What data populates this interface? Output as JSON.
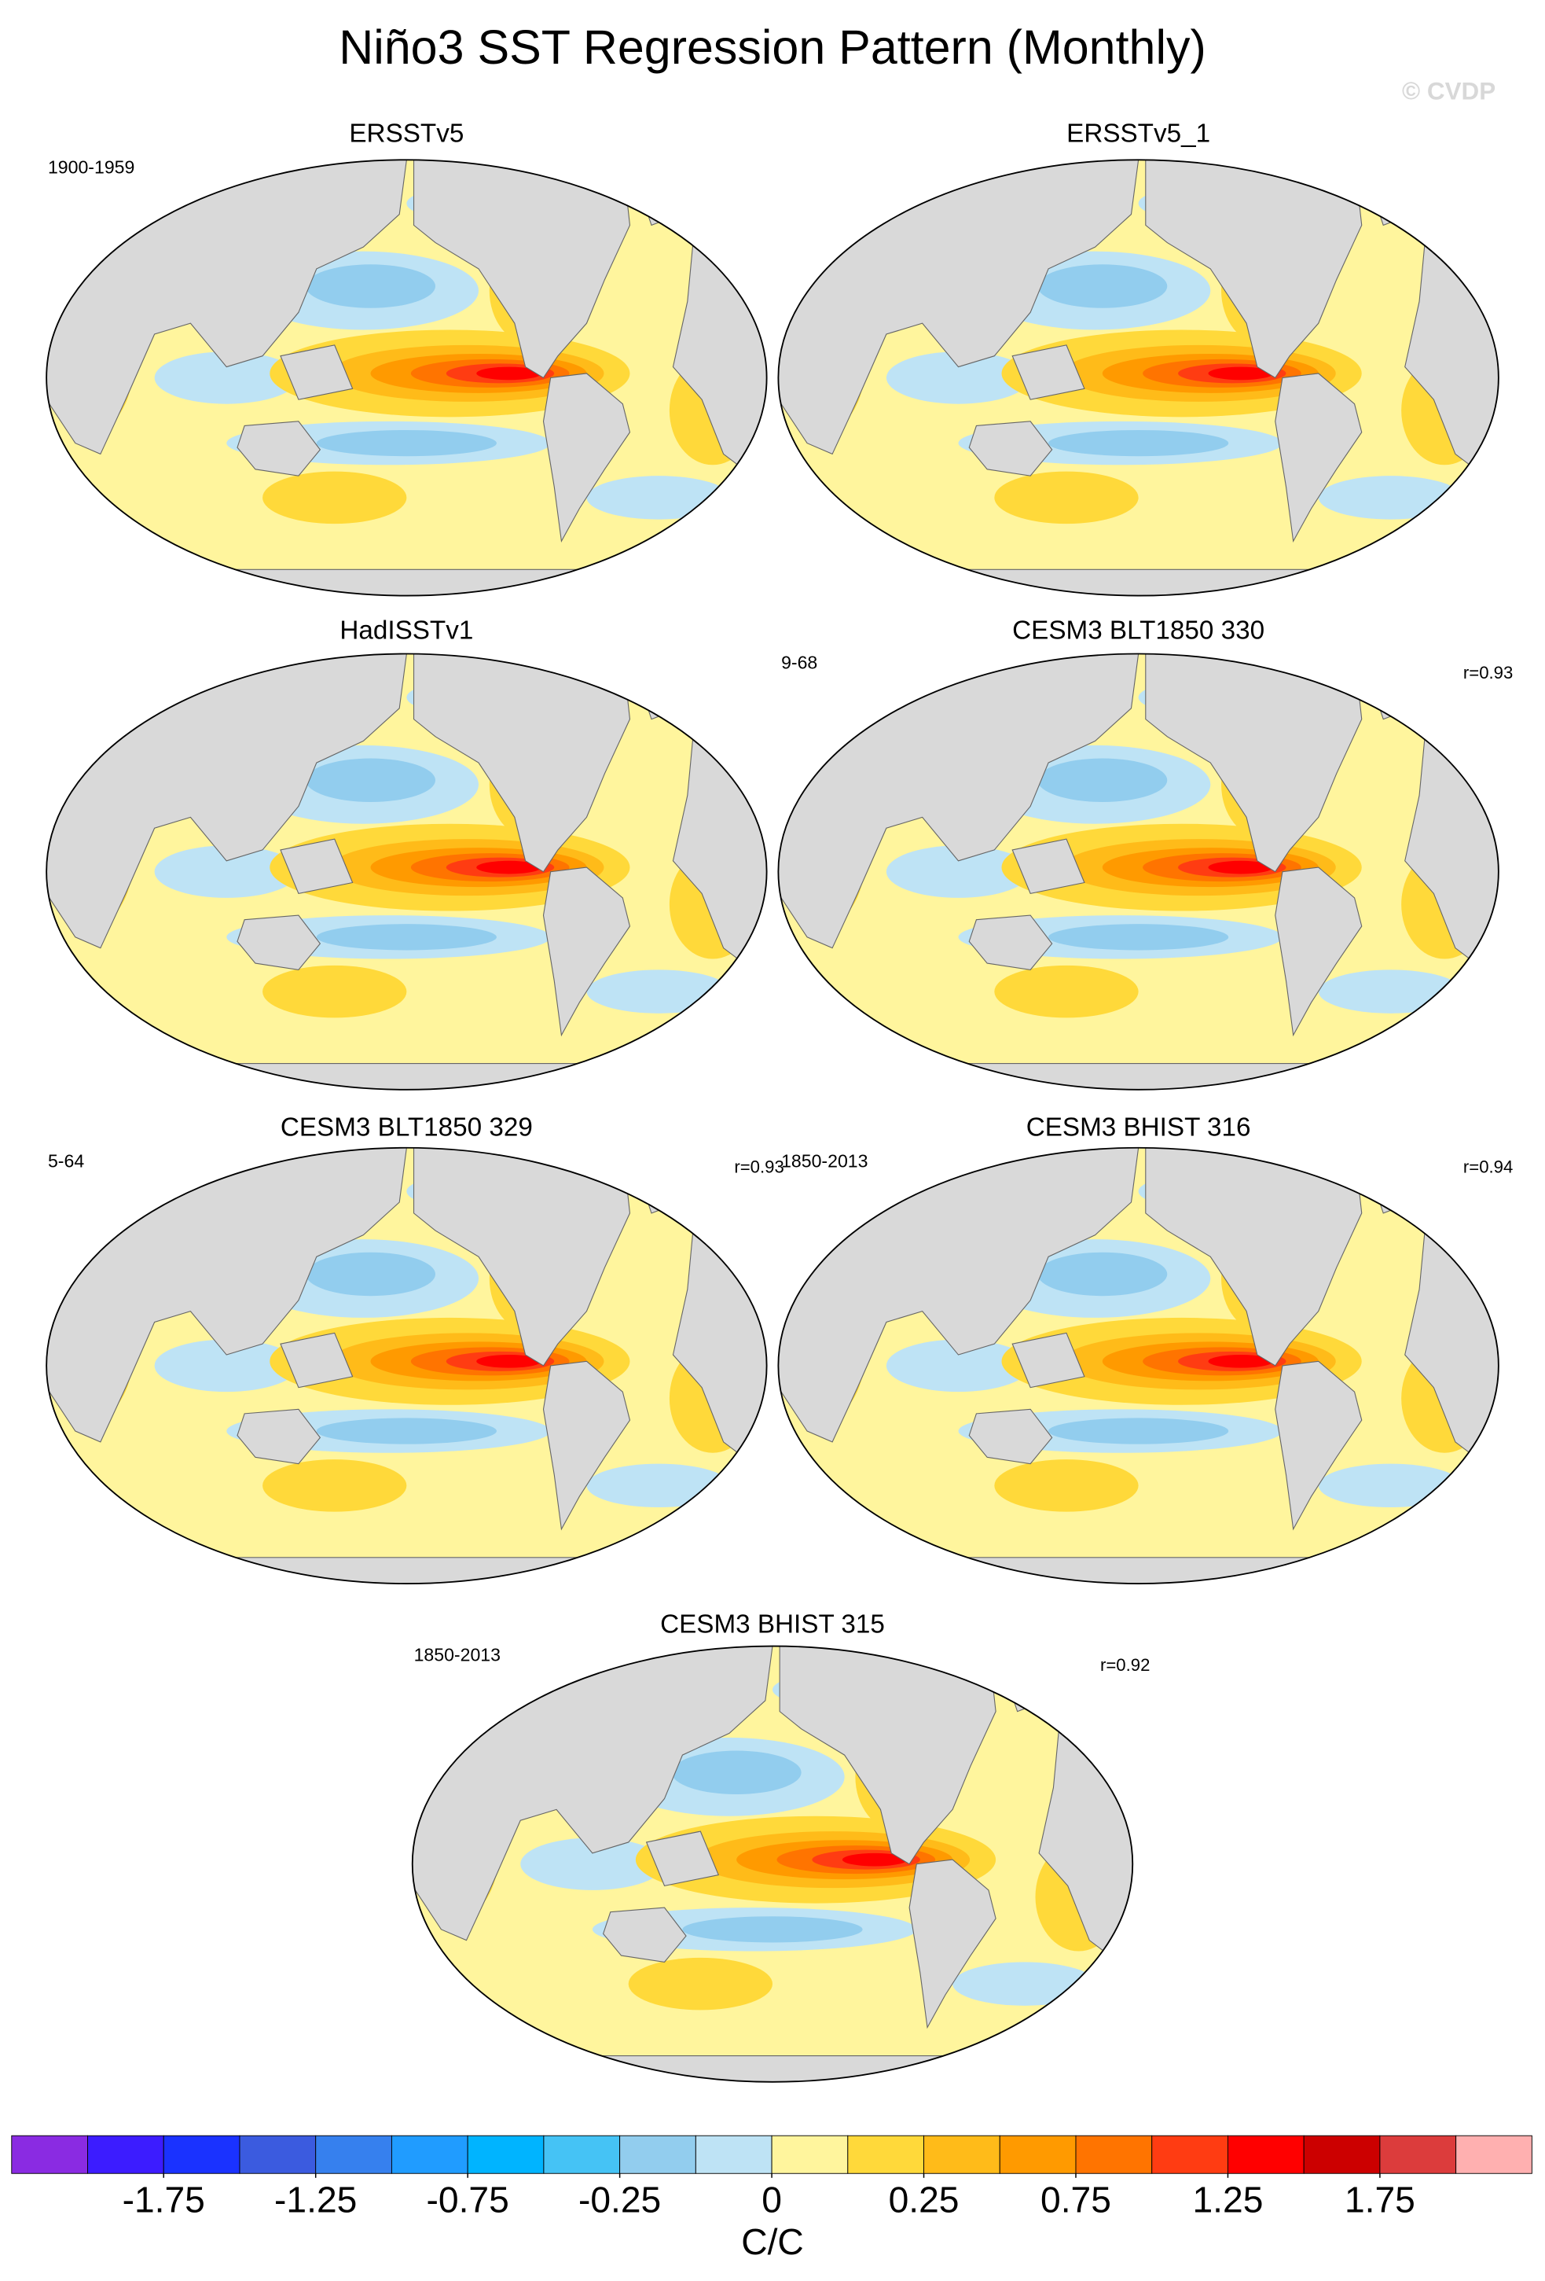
{
  "chart_data": {
    "type": "map",
    "title": "Niño3 SST Regression Pattern (Monthly)",
    "watermark": "© CVDP",
    "panels": [
      {
        "title": "ERSSTv5",
        "period": "1900-1959"
      },
      {
        "title": "ERSSTv5_1"
      },
      {
        "title": "HadISSTv1"
      },
      {
        "title": "CESM3 BLT1850 330",
        "period": "9-68",
        "r": "r=0.93"
      },
      {
        "title": "CESM3 BLT1850 329",
        "period": "5-64",
        "r": "r=0.93"
      },
      {
        "title": "CESM3 BHIST 316",
        "period": "1850-2013",
        "r": "r=0.94"
      },
      {
        "title": "CESM3 BHIST 315",
        "period": "1850-2013",
        "r": "r=0.92"
      }
    ],
    "colorbar": {
      "label": "C/C",
      "levels": [
        -2,
        -1.75,
        -1.5,
        -1.25,
        -1,
        -0.75,
        -0.5,
        -0.25,
        -0.1,
        0,
        0.1,
        0.25,
        0.5,
        0.75,
        1,
        1.25,
        1.5,
        1.75,
        2
      ],
      "colors": [
        "#8a2be2",
        "#3c1cff",
        "#1a32ff",
        "#3b5bdf",
        "#3680ee",
        "#209cff",
        "#00b4ff",
        "#45c3f5",
        "#92cdee",
        "#bee3f5",
        "#fff59d",
        "#ffd93a",
        "#ffbb19",
        "#ff9a00",
        "#ff7400",
        "#ff3c12",
        "#ff0000",
        "#cc0000",
        "#dc3c3c",
        "#ffb0b0"
      ],
      "ticks": [
        -1.75,
        -1.25,
        -0.75,
        -0.25,
        0,
        0.25,
        0.75,
        1.25,
        1.75
      ]
    }
  }
}
